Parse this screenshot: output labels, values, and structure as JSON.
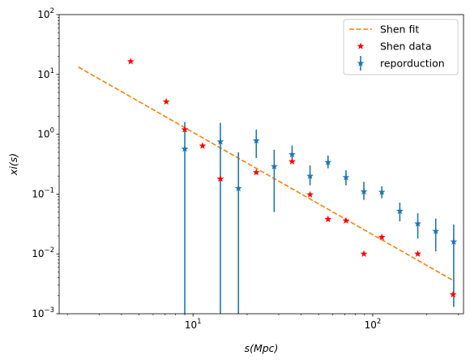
{
  "chart_data": {
    "type": "scatter",
    "xlabel": "s(Mpc)",
    "ylabel": "xi(s)",
    "xscale": "log",
    "yscale": "log",
    "xlim": [
      1.8,
      320
    ],
    "ylim": [
      0.001,
      100
    ],
    "legend_position": "top-right",
    "x_tick_labels": [
      {
        "value": 10,
        "base": "10",
        "exp": "1"
      },
      {
        "value": 100,
        "base": "10",
        "exp": "2"
      }
    ],
    "y_tick_labels": [
      {
        "value": 0.001,
        "base": "10",
        "exp": "−3"
      },
      {
        "value": 0.01,
        "base": "10",
        "exp": "−2"
      },
      {
        "value": 0.1,
        "base": "10",
        "exp": "−1"
      },
      {
        "value": 1,
        "base": "10",
        "exp": "0"
      },
      {
        "value": 10,
        "base": "10",
        "exp": "1"
      },
      {
        "value": 100,
        "base": "10",
        "exp": "2"
      }
    ],
    "series": [
      {
        "name": "Shen fit",
        "kind": "line",
        "style": "dashed",
        "color": "#ff7f0e",
        "x": [
          2.3,
          285
        ],
        "y": [
          13.3,
          0.0035
        ]
      },
      {
        "name": "Shen data",
        "kind": "scatter",
        "marker": "star",
        "color": "#ff0000",
        "x": [
          4.5,
          7.1,
          9.0,
          11.3,
          14.2,
          17.9,
          22.5,
          28.3,
          35.6,
          44.8,
          56.4,
          71.0,
          89.3,
          112.4,
          141.5,
          178.1,
          280.0
        ],
        "y": [
          16.5,
          3.5,
          1.2,
          0.64,
          0.18,
          null,
          0.23,
          null,
          0.35,
          0.098,
          0.038,
          0.036,
          0.01,
          0.019,
          null,
          0.01,
          0.0021
        ]
      },
      {
        "name": "reporduction",
        "kind": "errorbar",
        "marker": "star",
        "color": "#1f77b4",
        "x": [
          9.0,
          14.2,
          17.9,
          22.5,
          28.3,
          35.6,
          44.8,
          56.4,
          71.0,
          89.3,
          112.4,
          141.5,
          178.1,
          224.2,
          282.2
        ],
        "y": [
          0.57,
          0.75,
          0.125,
          0.78,
          0.29,
          0.46,
          0.2,
          0.34,
          0.19,
          0.11,
          0.108,
          0.052,
          0.032,
          0.024,
          0.016
        ],
        "y_low": [
          0.0009,
          0.0009,
          0.0009,
          0.4,
          0.05,
          0.34,
          0.14,
          0.27,
          0.14,
          0.08,
          0.085,
          0.035,
          0.018,
          0.011,
          0.0013
        ],
        "y_high": [
          1.6,
          1.55,
          0.5,
          1.2,
          0.55,
          0.65,
          0.3,
          0.44,
          0.25,
          0.16,
          0.135,
          0.072,
          0.048,
          0.039,
          0.031
        ]
      }
    ]
  }
}
